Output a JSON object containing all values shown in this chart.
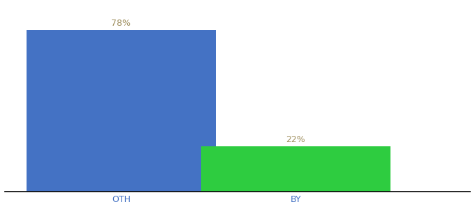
{
  "categories": [
    "OTH",
    "BY"
  ],
  "values": [
    78,
    22
  ],
  "bar_colors": [
    "#4472c4",
    "#2ecc40"
  ],
  "label_color": "#a09060",
  "xlabel_color": "#4472c4",
  "background_color": "#ffffff",
  "ylim": [
    0,
    90
  ],
  "bar_width": 0.65,
  "label_fontsize": 9,
  "xlabel_fontsize": 9,
  "annotations": [
    "78%",
    "22%"
  ],
  "x_positions": [
    0.3,
    0.9
  ]
}
